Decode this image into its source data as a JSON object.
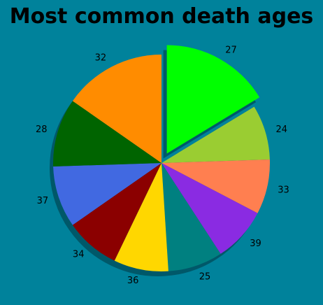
{
  "background": "#00829b",
  "chart_data": {
    "type": "pie",
    "title": "Most common death ages",
    "labels": [
      "27",
      "24",
      "33",
      "39",
      "25",
      "36",
      "34",
      "37",
      "28",
      "32"
    ],
    "values": [
      16,
      8,
      8,
      8,
      8,
      8,
      8,
      9,
      10,
      15
    ],
    "colors": [
      "#00ff00",
      "#9acd32",
      "#ff7f50",
      "#8a2be2",
      "#008080",
      "#ffd700",
      "#8b0000",
      "#4169e1",
      "#006400",
      "#ff8c00"
    ],
    "exploded": [
      "27"
    ],
    "shadow": true,
    "start_angle_deg": 90,
    "direction": "clockwise"
  }
}
